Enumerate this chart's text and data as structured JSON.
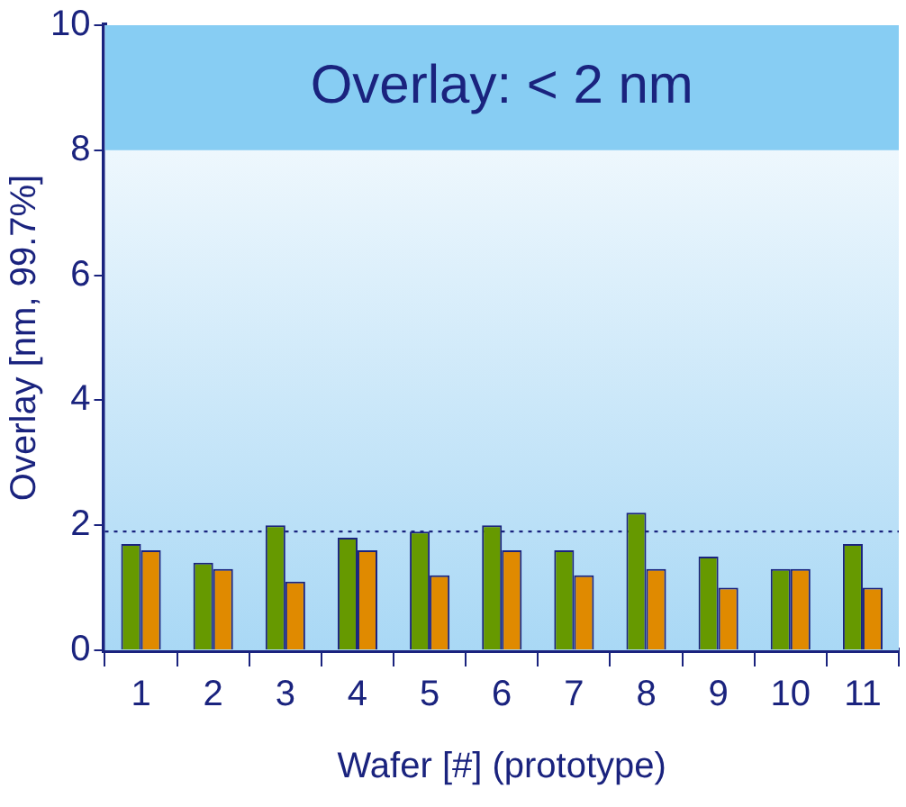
{
  "chart_data": {
    "type": "bar",
    "xlabel": "Wafer [#] (prototype)",
    "ylabel": "Overlay [nm, 99.7%]",
    "categories": [
      "1",
      "2",
      "3",
      "4",
      "5",
      "6",
      "7",
      "8",
      "9",
      "10",
      "11"
    ],
    "series": [
      {
        "color": "#669900",
        "values": [
          1.7,
          1.4,
          2.0,
          1.8,
          1.9,
          2.0,
          1.6,
          2.2,
          1.5,
          1.3,
          1.7
        ]
      },
      {
        "color": "#e08a00",
        "values": [
          1.6,
          1.3,
          1.1,
          1.6,
          1.2,
          1.6,
          1.2,
          1.3,
          1.0,
          1.3,
          1.0
        ]
      }
    ],
    "ylim": [
      0,
      10
    ],
    "yticks": [
      0,
      2,
      4,
      6,
      8,
      10
    ],
    "grid": false,
    "legend": false,
    "ref_lines": [
      {
        "axis": "y",
        "value": 1.9,
        "color": "#1a237e",
        "line_style": "dotted"
      }
    ],
    "bands": [
      {
        "axis": "y",
        "from": 8,
        "to": 10,
        "label": "Overlay: < 2 nm",
        "color": "#87cdf3"
      }
    ]
  }
}
